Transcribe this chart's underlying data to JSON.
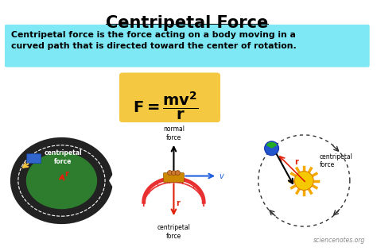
{
  "title": "Centripetal Force",
  "title_underline": true,
  "definition": "Centripetal force is the force acting on a body moving in a\ncurved path that is directed toward the center of rotation.",
  "definition_bg": "#7ee8f5",
  "formula_bg": "#f5c842",
  "formula": "F = ⁠mv²/r",
  "formula_display": "F = ",
  "formula_num": "mv²",
  "formula_den": "r",
  "normal_force_label": "normal\nforce",
  "centripetal_label_mid": "centripetal\nforce",
  "centripetal_label_left": "centripetal\nforce",
  "centripetal_label_right": "centripetal\nforce",
  "r_label": "r",
  "v_label": "v",
  "watermark": "sciencenotes.org",
  "bg_color": "#ffffff",
  "text_color": "#000000",
  "definition_text_color": "#000000",
  "arrow_color_black": "#000000",
  "arrow_color_red": "#e0210a",
  "arrow_color_blue": "#2060e0",
  "arrow_color_yellow": "#f5c842",
  "track_outer": "#333333",
  "track_inner": "#2d7a2d",
  "track_mid": "#888888",
  "dashed_circle_color": "#333333"
}
